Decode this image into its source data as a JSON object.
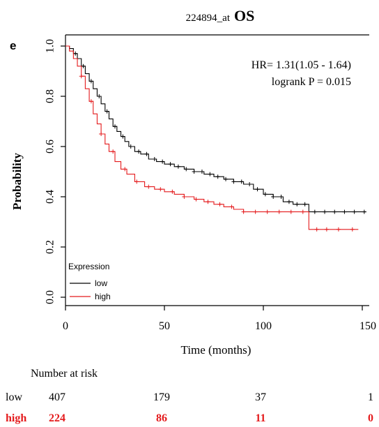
{
  "panel_label": "e",
  "chart_data": {
    "type": "line",
    "title": {
      "probe": "224894_at",
      "endpoint": "OS"
    },
    "xlabel": "Time (months)",
    "ylabel": "Probability",
    "xlim": [
      0,
      150
    ],
    "ylim": [
      0,
      1
    ],
    "x_ticks": [
      "0",
      "50",
      "100",
      "150"
    ],
    "y_ticks": [
      "0.0",
      "0.2",
      "0.4",
      "0.6",
      "0.8",
      "1.0"
    ],
    "annotation": {
      "hr": "HR= 1.31(1.05 - 1.64)",
      "logrank": "logrank P = 0.015"
    },
    "legend": {
      "title": "Expression",
      "position": "bottom-left",
      "items": [
        "low",
        "high"
      ]
    },
    "colors": {
      "low": "#000000",
      "high": "#e41a1c",
      "axis": "#000000"
    },
    "series": [
      {
        "name": "low",
        "color": "#000000",
        "points": [
          [
            0,
            1.0
          ],
          [
            2,
            0.99
          ],
          [
            4,
            0.97
          ],
          [
            6,
            0.95
          ],
          [
            8,
            0.92
          ],
          [
            10,
            0.89
          ],
          [
            12,
            0.86
          ],
          [
            14,
            0.83
          ],
          [
            16,
            0.8
          ],
          [
            18,
            0.77
          ],
          [
            20,
            0.74
          ],
          [
            22,
            0.71
          ],
          [
            24,
            0.68
          ],
          [
            26,
            0.66
          ],
          [
            28,
            0.64
          ],
          [
            30,
            0.62
          ],
          [
            32,
            0.6
          ],
          [
            35,
            0.58
          ],
          [
            38,
            0.57
          ],
          [
            42,
            0.55
          ],
          [
            46,
            0.54
          ],
          [
            50,
            0.53
          ],
          [
            55,
            0.52
          ],
          [
            60,
            0.51
          ],
          [
            65,
            0.5
          ],
          [
            70,
            0.49
          ],
          [
            75,
            0.48
          ],
          [
            80,
            0.47
          ],
          [
            85,
            0.46
          ],
          [
            90,
            0.45
          ],
          [
            95,
            0.43
          ],
          [
            100,
            0.41
          ],
          [
            105,
            0.4
          ],
          [
            110,
            0.38
          ],
          [
            115,
            0.37
          ],
          [
            120,
            0.37
          ],
          [
            123,
            0.34
          ],
          [
            135,
            0.34
          ],
          [
            152,
            0.34
          ]
        ],
        "censor_x": [
          5,
          9,
          13,
          17,
          21,
          25,
          29,
          33,
          37,
          41,
          45,
          49,
          53,
          57,
          61,
          65,
          69,
          73,
          77,
          81,
          85,
          89,
          93,
          97,
          101,
          105,
          109,
          113,
          117,
          121,
          126,
          131,
          136,
          141,
          146,
          151
        ]
      },
      {
        "name": "high",
        "color": "#e41a1c",
        "points": [
          [
            0,
            1.0
          ],
          [
            2,
            0.98
          ],
          [
            4,
            0.95
          ],
          [
            6,
            0.92
          ],
          [
            8,
            0.88
          ],
          [
            10,
            0.83
          ],
          [
            12,
            0.78
          ],
          [
            14,
            0.73
          ],
          [
            16,
            0.69
          ],
          [
            18,
            0.65
          ],
          [
            20,
            0.61
          ],
          [
            22,
            0.58
          ],
          [
            25,
            0.54
          ],
          [
            28,
            0.51
          ],
          [
            31,
            0.49
          ],
          [
            35,
            0.46
          ],
          [
            40,
            0.44
          ],
          [
            45,
            0.43
          ],
          [
            50,
            0.42
          ],
          [
            55,
            0.41
          ],
          [
            60,
            0.4
          ],
          [
            65,
            0.39
          ],
          [
            70,
            0.38
          ],
          [
            75,
            0.37
          ],
          [
            80,
            0.36
          ],
          [
            85,
            0.35
          ],
          [
            90,
            0.34
          ],
          [
            95,
            0.34
          ],
          [
            100,
            0.34
          ],
          [
            110,
            0.34
          ],
          [
            123,
            0.34
          ],
          [
            123,
            0.27
          ],
          [
            148,
            0.27
          ]
        ],
        "censor_x": [
          8,
          13,
          18,
          24,
          30,
          36,
          42,
          48,
          54,
          60,
          66,
          72,
          78,
          84,
          90,
          96,
          102,
          108,
          114,
          120,
          127,
          132,
          138,
          145
        ]
      }
    ]
  },
  "risk_table": {
    "title": "Number at risk",
    "rows": [
      {
        "label": "low",
        "color": "#000000",
        "values": [
          "407",
          "179",
          "37",
          "1"
        ]
      },
      {
        "label": "high",
        "color": "#e41a1c",
        "values": [
          "224",
          "86",
          "11",
          "0"
        ]
      }
    ]
  }
}
